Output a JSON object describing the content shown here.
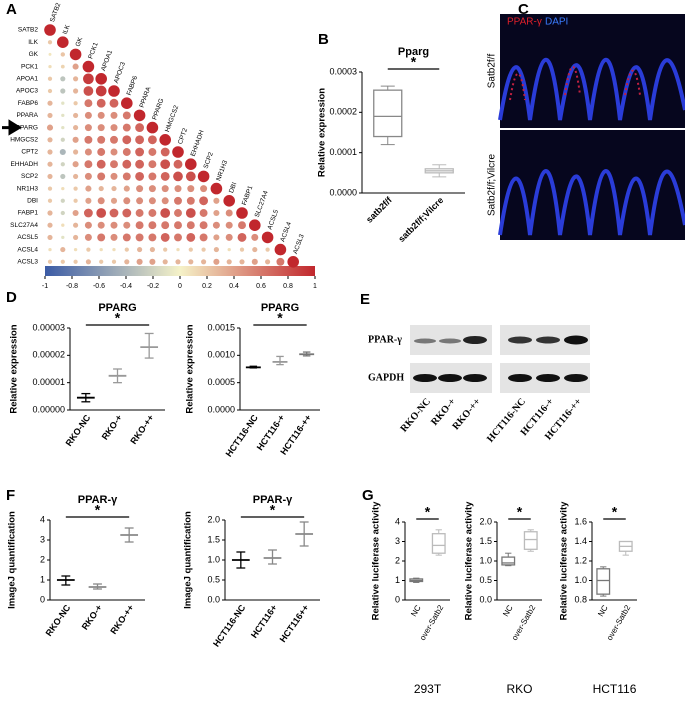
{
  "chart_data": [
    {
      "type": "correlation",
      "genes": [
        "SATB2",
        "ILK",
        "GK",
        "PCK1",
        "APOA1",
        "APOC3",
        "FABP6",
        "PPARA",
        "PPARG",
        "HMGCS2",
        "CPT2",
        "EHHADH",
        "SCP2",
        "NR1H3",
        "DBI",
        "FABP1",
        "SLC27A4",
        "ACSL5",
        "ACSL4",
        "ACSL3"
      ],
      "matrix": [
        [
          1
        ],
        [
          0.2,
          1
        ],
        [
          0.06,
          0.22,
          1
        ],
        [
          0.1,
          0.15,
          0.4,
          1
        ],
        [
          0.2,
          -0.3,
          0.3,
          0.9,
          1
        ],
        [
          0.2,
          -0.3,
          0.3,
          0.8,
          0.9,
          1
        ],
        [
          0.3,
          -0.1,
          0.2,
          0.6,
          0.7,
          0.7,
          1
        ],
        [
          0.3,
          -0.1,
          0.3,
          0.5,
          0.5,
          0.5,
          0.6,
          1
        ],
        [
          0.4,
          -0.1,
          0.3,
          0.5,
          0.5,
          0.5,
          0.6,
          0.7,
          1
        ],
        [
          0.3,
          -0.2,
          0.4,
          0.6,
          0.6,
          0.6,
          0.7,
          0.7,
          0.7,
          1
        ],
        [
          0.3,
          -0.4,
          0.3,
          0.5,
          0.6,
          0.5,
          0.6,
          0.7,
          0.6,
          0.7,
          1
        ],
        [
          0.3,
          -0.2,
          0.4,
          0.6,
          0.7,
          0.6,
          0.7,
          0.7,
          0.6,
          0.8,
          0.7,
          1
        ],
        [
          0.3,
          -0.3,
          0.3,
          0.5,
          0.6,
          0.5,
          0.6,
          0.7,
          0.6,
          0.7,
          0.8,
          0.8,
          1
        ],
        [
          0.2,
          0.1,
          0.2,
          0.4,
          0.3,
          0.3,
          0.4,
          0.5,
          0.5,
          0.5,
          0.5,
          0.5,
          0.5,
          1
        ],
        [
          0.2,
          -0.2,
          0.2,
          0.4,
          0.5,
          0.4,
          0.5,
          0.5,
          0.5,
          0.5,
          0.6,
          0.6,
          0.7,
          0.4,
          1
        ],
        [
          0.3,
          -0.2,
          0.4,
          0.7,
          0.8,
          0.7,
          0.7,
          0.6,
          0.6,
          0.8,
          0.6,
          0.8,
          0.6,
          0.4,
          0.5,
          1
        ],
        [
          0.3,
          0.1,
          0.3,
          0.5,
          0.5,
          0.5,
          0.5,
          0.6,
          0.6,
          0.6,
          0.6,
          0.6,
          0.6,
          0.5,
          0.5,
          0.6,
          1
        ],
        [
          0.3,
          -0.1,
          0.3,
          0.5,
          0.6,
          0.5,
          0.6,
          0.6,
          0.6,
          0.7,
          0.6,
          0.7,
          0.6,
          0.4,
          0.5,
          0.7,
          0.5,
          1
        ],
        [
          0.1,
          0.3,
          0.1,
          0.2,
          0.1,
          0.1,
          0.2,
          0.3,
          0.3,
          0.2,
          0.1,
          0.2,
          0.2,
          0.3,
          0.1,
          0.2,
          0.3,
          0.2,
          1
        ],
        [
          0.2,
          0.2,
          0.2,
          0.3,
          0.2,
          0.2,
          0.3,
          0.4,
          0.4,
          0.3,
          0.3,
          0.3,
          0.3,
          0.4,
          0.3,
          0.3,
          0.4,
          0.3,
          0.6,
          1
        ]
      ],
      "clim": [
        -1,
        1
      ],
      "colorbar_ticks": [
        -1,
        -0.8,
        -0.6,
        -0.4,
        -0.2,
        0,
        0.2,
        0.4,
        0.6,
        0.8,
        1
      ],
      "colormap": [
        "#3b5ba5",
        "#f5f2c8",
        "#c1272d"
      ]
    },
    {
      "type": "box",
      "title": "Pparg",
      "ylabel": "Relative expression",
      "categories": [
        "satb2f/f",
        "satb2f/f;Vilcre"
      ],
      "boxes": [
        {
          "min": 0.00012,
          "q1": 0.00014,
          "median": 0.00019,
          "q3": 0.000255,
          "max": 0.000265
        },
        {
          "min": 4e-05,
          "q1": 5e-05,
          "median": 5.5e-05,
          "q3": 6e-05,
          "max": 7e-05
        }
      ],
      "colors": [
        "#888888",
        "#bbbbbb"
      ],
      "ylim": [
        0,
        0.0003
      ],
      "yticks": [
        {
          "value": 0,
          "label": "0.0000"
        },
        0.0001,
        0.0002,
        0.0003
      ],
      "significance": "*"
    },
    {
      "type": "errorbar",
      "title": "PPARG",
      "ylabel": "Relative expression",
      "categories": [
        "RKO-NC",
        "RKO-+",
        "RKO-++"
      ],
      "values": [
        4.5e-06,
        1.25e-05,
        2.3e-05
      ],
      "low": [
        3e-06,
        1e-05,
        1.9e-05
      ],
      "high": [
        6e-06,
        1.5e-05,
        2.8e-05
      ],
      "colors": [
        "#000000",
        "#999999",
        "#999999"
      ],
      "ylim": [
        0,
        3e-05
      ],
      "yticks": [
        {
          "value": 0,
          "label": "0.00000"
        },
        1e-05,
        2e-05,
        3e-05
      ],
      "significance": "*"
    },
    {
      "type": "errorbar",
      "title": "PPARG",
      "ylabel": "Relative expression",
      "categories": [
        "HCT116-NC",
        "HCT116-+",
        "HCT116-++"
      ],
      "values": [
        0.00078,
        0.00088,
        0.00102
      ],
      "low": [
        0.00077,
        0.00083,
        0.00099
      ],
      "high": [
        0.0008,
        0.00098,
        0.00106
      ],
      "colors": [
        "#000000",
        "#999999",
        "#777777"
      ],
      "ylim": [
        0,
        0.0015
      ],
      "yticks": [
        {
          "value": 0,
          "label": "0.0000"
        },
        0.0005,
        {
          "value": 0.001,
          "label": "0.0010"
        },
        {
          "value": 0.0015,
          "label": "0.0015"
        }
      ],
      "significance": "*"
    },
    {
      "type": "errorbar",
      "title": "PPAR-γ",
      "ylabel": "ImageJ quantification",
      "categories": [
        "RKO-NC",
        "RKO-+",
        "RKO-++"
      ],
      "values": [
        1.0,
        0.65,
        3.25
      ],
      "low": [
        0.75,
        0.55,
        2.9
      ],
      "high": [
        1.2,
        0.8,
        3.6
      ],
      "colors": [
        "#000000",
        "#888888",
        "#888888"
      ],
      "ylim": [
        0,
        4
      ],
      "yticks": [
        0,
        1,
        2,
        3,
        4
      ],
      "significance": "*"
    },
    {
      "type": "errorbar",
      "title": "PPAR-γ",
      "ylabel": "ImageJ quantification",
      "categories": [
        "HCT116-NC",
        "HCT116+",
        "HCT116++"
      ],
      "values": [
        1.0,
        1.05,
        1.65
      ],
      "low": [
        0.8,
        0.9,
        1.35
      ],
      "high": [
        1.2,
        1.25,
        1.95
      ],
      "colors": [
        "#000000",
        "#888888",
        "#888888"
      ],
      "ylim": [
        0,
        2
      ],
      "yticks": [
        {
          "value": 0,
          "label": "0.0"
        },
        0.5,
        {
          "value": 1,
          "label": "1.0"
        },
        1.5,
        {
          "value": 2,
          "label": "2.0"
        }
      ],
      "significance": "*"
    },
    {
      "type": "box",
      "ylabel": "Relative luciferase activity",
      "xlabel": "293T",
      "categories": [
        "NC",
        "over-Satb2"
      ],
      "boxes": [
        {
          "min": 0.9,
          "q1": 0.95,
          "median": 1.0,
          "q3": 1.08,
          "max": 1.12
        },
        {
          "min": 2.3,
          "q1": 2.4,
          "median": 2.8,
          "q3": 3.4,
          "max": 3.6
        }
      ],
      "colors": [
        "#777777",
        "#bbbbbb"
      ],
      "ylim": [
        0,
        4
      ],
      "yticks": [
        0,
        1,
        2,
        3,
        4
      ],
      "significance": "*"
    },
    {
      "type": "box",
      "ylabel": "Relative luciferase activity",
      "xlabel": "RKO",
      "categories": [
        "NC",
        "over-Satb2"
      ],
      "boxes": [
        {
          "min": 0.88,
          "q1": 0.9,
          "median": 0.95,
          "q3": 1.1,
          "max": 1.2
        },
        {
          "min": 1.25,
          "q1": 1.3,
          "median": 1.55,
          "q3": 1.75,
          "max": 1.8
        }
      ],
      "colors": [
        "#777777",
        "#bbbbbb"
      ],
      "ylim": [
        0,
        2
      ],
      "yticks": [
        {
          "value": 0,
          "label": "0.0"
        },
        0.5,
        {
          "value": 1,
          "label": "1.0"
        },
        1.5,
        {
          "value": 2,
          "label": "2.0"
        }
      ],
      "significance": "*"
    },
    {
      "type": "box",
      "ylabel": "Relative luciferase activity",
      "xlabel": "HCT116",
      "categories": [
        "NC",
        "over-Satb2"
      ],
      "boxes": [
        {
          "min": 0.84,
          "q1": 0.86,
          "median": 1.0,
          "q3": 1.12,
          "max": 1.14
        },
        {
          "min": 1.26,
          "q1": 1.3,
          "median": 1.35,
          "q3": 1.4,
          "max": 1.4
        }
      ],
      "colors": [
        "#777777",
        "#bbbbbb"
      ],
      "ylim": [
        0.8,
        1.6
      ],
      "yticks": [
        0.8,
        {
          "value": 1,
          "label": "1.0"
        },
        1.2,
        1.4,
        1.6
      ],
      "significance": "*"
    }
  ],
  "panels": {
    "labels": [
      "A",
      "B",
      "C",
      "D",
      "E",
      "F",
      "G"
    ],
    "C": {
      "stain1": "PPAR-γ",
      "stain2": "DAPI",
      "rows": [
        "Satb2f/f",
        "Satb2f/f;Vilcre"
      ]
    },
    "E": {
      "rows": [
        "PPAR-γ",
        "GAPDH"
      ],
      "lanes": [
        "RKO-NC",
        "RKO-+",
        "RKO-++",
        "HCT116-NC",
        "HCT116-+",
        "HCT116-++"
      ]
    }
  }
}
